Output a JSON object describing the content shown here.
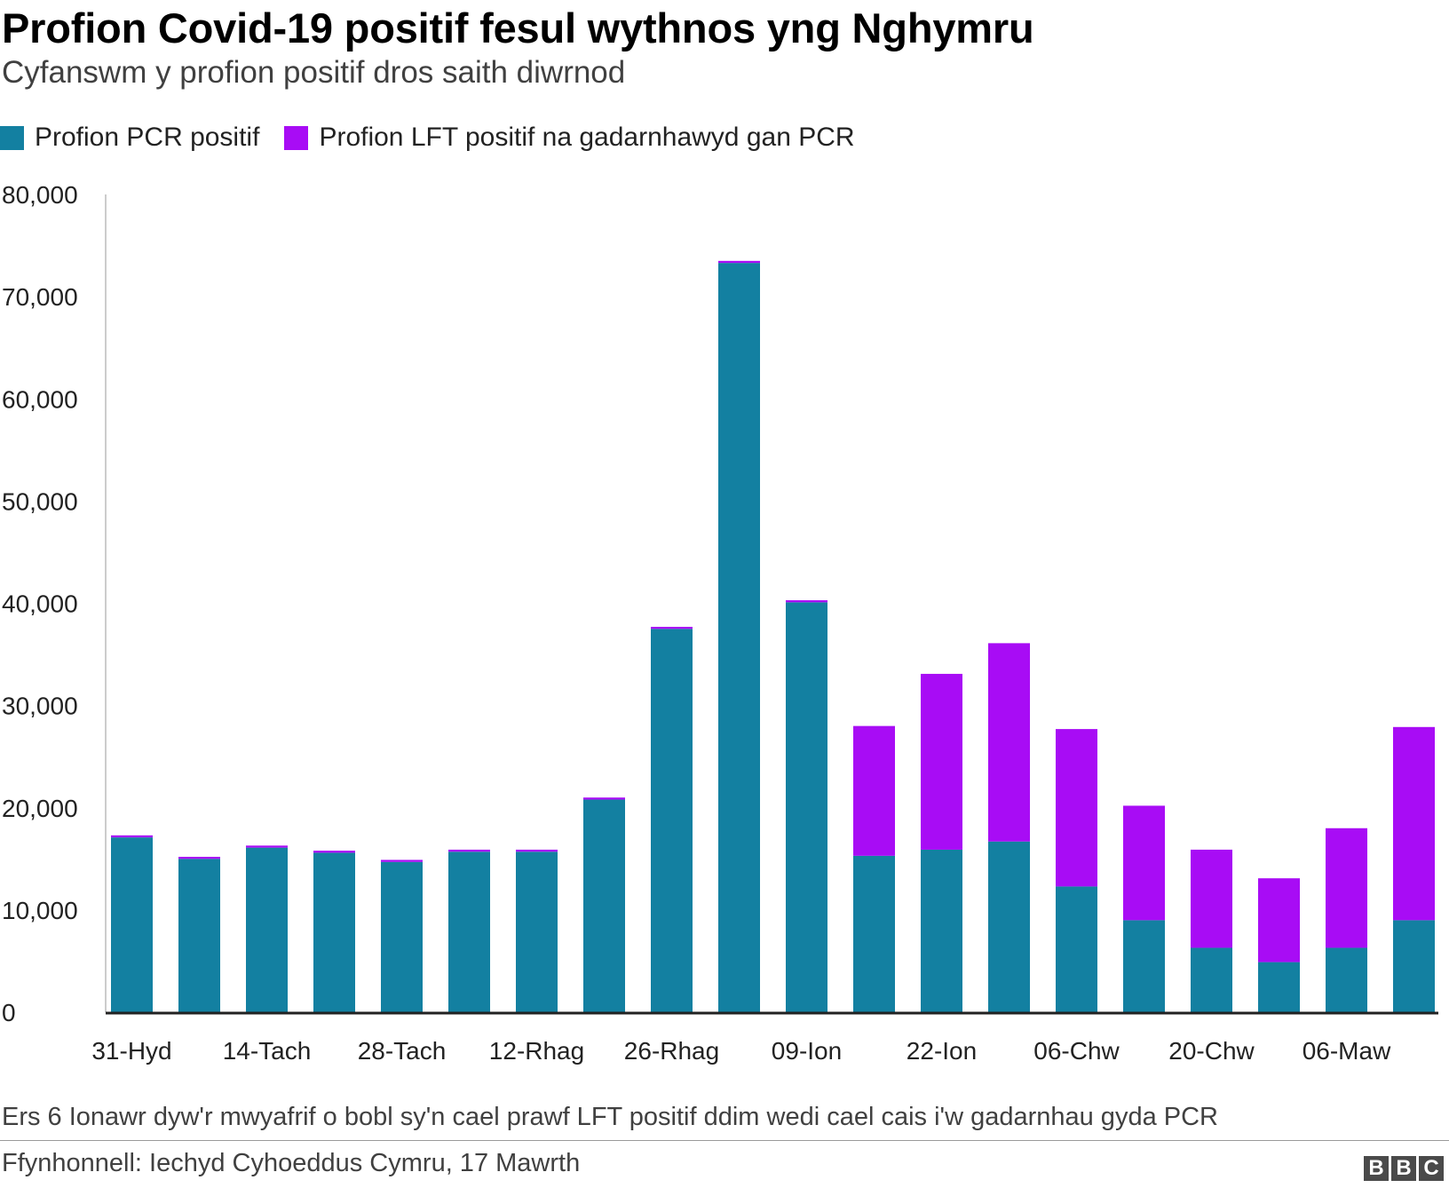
{
  "header": {
    "title": "Profion Covid-19 positif fesul wythnos yng Nghymru",
    "subtitle": "Cyfanswm y profion positif dros saith diwrnod"
  },
  "legend": [
    {
      "label": "Profion PCR positif",
      "color": "#1380A1"
    },
    {
      "label": "Profion LFT positif na gadarnhawyd gan PCR",
      "color": "#A80CF5"
    }
  ],
  "footer": {
    "note": "Ers 6 Ionawr dyw'r mwyafrif o bobl sy'n cael prawf LFT positif ddim wedi cael cais i'w gadarnhau gyda PCR",
    "source": "Ffynhonnell: Iechyd Cyhoeddus Cymru, 17 Mawrth",
    "logo": [
      "B",
      "B",
      "C"
    ]
  },
  "chart_data": {
    "type": "bar",
    "stacked": true,
    "categories": [
      "31-Hyd",
      "",
      "14-Tach",
      "",
      "28-Tach",
      "",
      "12-Rhag",
      "",
      "26-Rhag",
      "",
      "09-Ion",
      "",
      "22-Ion",
      "",
      "06-Chw",
      "",
      "20-Chw",
      "",
      "06-Maw",
      ""
    ],
    "series": [
      {
        "name": "Profion PCR positif",
        "color": "#1380A1",
        "values": [
          17100,
          15000,
          16100,
          15600,
          14700,
          15700,
          15700,
          20800,
          37500,
          73300,
          40100,
          15300,
          15900,
          16700,
          12300,
          9000,
          6300,
          4900,
          6300,
          9000
        ]
      },
      {
        "name": "Profion LFT positif na gadarnhawyd gan PCR",
        "color": "#A80CF5",
        "values": [
          200,
          200,
          200,
          200,
          200,
          200,
          200,
          200,
          200,
          200,
          200,
          12700,
          17200,
          19400,
          15400,
          11200,
          9600,
          8200,
          11700,
          18900
        ]
      }
    ],
    "xlabel": "",
    "ylabel": "",
    "ylim": [
      0,
      80000
    ],
    "yticks": [
      0,
      10000,
      20000,
      30000,
      40000,
      50000,
      60000,
      70000,
      80000
    ],
    "ytick_labels": [
      "0",
      "10,000",
      "20,000",
      "30,000",
      "40,000",
      "50,000",
      "60,000",
      "70,000",
      "80,000"
    ],
    "grid": false,
    "legend_position": "top-left"
  }
}
